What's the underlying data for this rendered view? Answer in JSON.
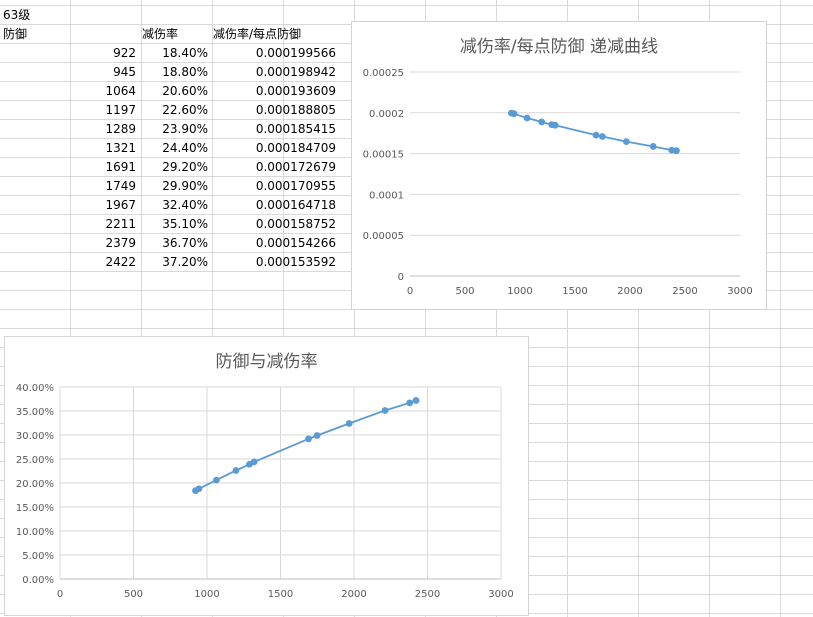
{
  "sheet": {
    "level_label": "63级",
    "headers": [
      "防御",
      "减伤率",
      "减伤率/每点防御"
    ],
    "rows": [
      [
        "922",
        "18.40%",
        "0.000199566"
      ],
      [
        "945",
        "18.80%",
        "0.000198942"
      ],
      [
        "1064",
        "20.60%",
        "0.000193609"
      ],
      [
        "1197",
        "22.60%",
        "0.000188805"
      ],
      [
        "1289",
        "23.90%",
        "0.000185415"
      ],
      [
        "1321",
        "24.40%",
        "0.000184709"
      ],
      [
        "1691",
        "29.20%",
        "0.000172679"
      ],
      [
        "1749",
        "29.90%",
        "0.000170955"
      ],
      [
        "1967",
        "32.40%",
        "0.000164718"
      ],
      [
        "2211",
        "35.10%",
        "0.000158752"
      ],
      [
        "2379",
        "36.70%",
        "0.000154266"
      ],
      [
        "2422",
        "37.20%",
        "0.000153592"
      ]
    ]
  },
  "colors": {
    "series": "#5b9bd5",
    "gridline": "#d9d9d9",
    "axis_text": "#595959"
  },
  "chart_data": [
    {
      "type": "scatter",
      "title": "减伤率/每点防御 递减曲线",
      "x": [
        922,
        945,
        1064,
        1197,
        1289,
        1321,
        1691,
        1749,
        1967,
        2211,
        2379,
        2422
      ],
      "y": [
        0.000199566,
        0.000198942,
        0.000193609,
        0.000188805,
        0.000185415,
        0.000184709,
        0.000172679,
        0.000170955,
        0.000164718,
        0.000158752,
        0.000154266,
        0.000153592
      ],
      "xlim": [
        0,
        3000
      ],
      "ylim": [
        0,
        0.00025
      ],
      "x_ticks": [
        "0",
        "500",
        "1000",
        "1500",
        "2000",
        "2500",
        "3000"
      ],
      "y_ticks": [
        "0",
        "0.00005",
        "0.0001",
        "0.00015",
        "0.0002",
        "0.00025"
      ],
      "grid": "horizontal",
      "trendline": true
    },
    {
      "type": "scatter",
      "title": "防御与减伤率",
      "x": [
        922,
        945,
        1064,
        1197,
        1289,
        1321,
        1691,
        1749,
        1967,
        2211,
        2379,
        2422
      ],
      "y": [
        18.4,
        18.8,
        20.6,
        22.6,
        23.9,
        24.4,
        29.2,
        29.9,
        32.4,
        35.1,
        36.7,
        37.2
      ],
      "xlim": [
        0,
        3000
      ],
      "ylim": [
        0,
        40
      ],
      "x_ticks": [
        "0",
        "500",
        "1000",
        "1500",
        "2000",
        "2500",
        "3000"
      ],
      "y_ticks": [
        "0.00%",
        "5.00%",
        "10.00%",
        "15.00%",
        "20.00%",
        "25.00%",
        "30.00%",
        "35.00%",
        "40.00%"
      ],
      "grid": "both",
      "trendline": true
    }
  ]
}
